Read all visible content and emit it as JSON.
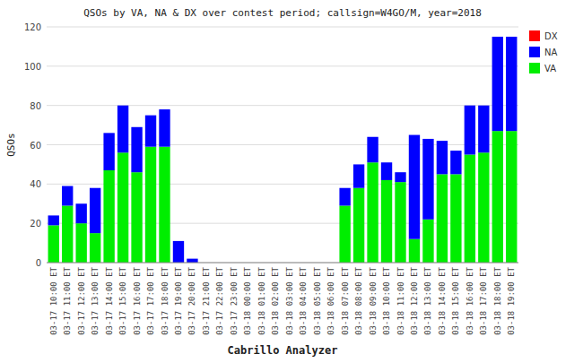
{
  "chart_data": {
    "type": "bar",
    "stacked": true,
    "title": "QSOs by VA, NA & DX over contest period; callsign=W4GO/M, year=2018",
    "xlabel": "Cabrillo Analyzer",
    "ylabel": "QSOs",
    "categories": [
      "03-17 10:00 ET",
      "03-17 11:00 ET",
      "03-17 12:00 ET",
      "03-17 13:00 ET",
      "03-17 14:00 ET",
      "03-17 15:00 ET",
      "03-17 16:00 ET",
      "03-17 17:00 ET",
      "03-17 18:00 ET",
      "03-17 19:00 ET",
      "03-17 20:00 ET",
      "03-17 21:00 ET",
      "03-17 22:00 ET",
      "03-17 23:00 ET",
      "03-18 00:00 ET",
      "03-18 01:00 ET",
      "03-18 02:00 ET",
      "03-18 03:00 ET",
      "03-18 04:00 ET",
      "03-18 05:00 ET",
      "03-18 06:00 ET",
      "03-18 07:00 ET",
      "03-18 08:00 ET",
      "03-18 09:00 ET",
      "03-18 10:00 ET",
      "03-18 11:00 ET",
      "03-18 12:00 ET",
      "03-18 13:00 ET",
      "03-18 14:00 ET",
      "03-18 15:00 ET",
      "03-18 16:00 ET",
      "03-18 17:00 ET",
      "03-18 18:00 ET",
      "03-18 19:00 ET"
    ],
    "series": [
      {
        "name": "VA",
        "color": "#00ee00",
        "values": [
          19,
          29,
          20,
          15,
          47,
          56,
          46,
          59,
          59,
          0,
          0,
          0,
          0,
          0,
          0,
          0,
          0,
          0,
          0,
          0,
          0,
          29,
          38,
          51,
          42,
          41,
          12,
          22,
          45,
          45,
          55,
          56,
          67,
          67
        ]
      },
      {
        "name": "NA",
        "color": "#0000ff",
        "values": [
          5,
          10,
          10,
          23,
          19,
          24,
          23,
          16,
          19,
          11,
          2,
          0,
          0,
          0,
          0,
          0,
          0,
          0,
          0,
          0,
          0,
          9,
          12,
          13,
          9,
          5,
          53,
          41,
          17,
          12,
          25,
          24,
          48,
          48
        ]
      },
      {
        "name": "DX",
        "color": "#ff0000",
        "values": [
          0,
          0,
          0,
          0,
          0,
          0,
          0,
          0,
          0,
          0,
          0,
          0,
          0,
          0,
          0,
          0,
          0,
          0,
          0,
          0,
          0,
          0,
          0,
          0,
          0,
          0,
          0,
          0,
          0,
          0,
          0,
          0,
          0,
          0
        ]
      }
    ],
    "ylim": [
      0,
      120
    ],
    "yticks": [
      0,
      20,
      40,
      60,
      80,
      100,
      120
    ],
    "grid": true,
    "legend": "upper right"
  }
}
